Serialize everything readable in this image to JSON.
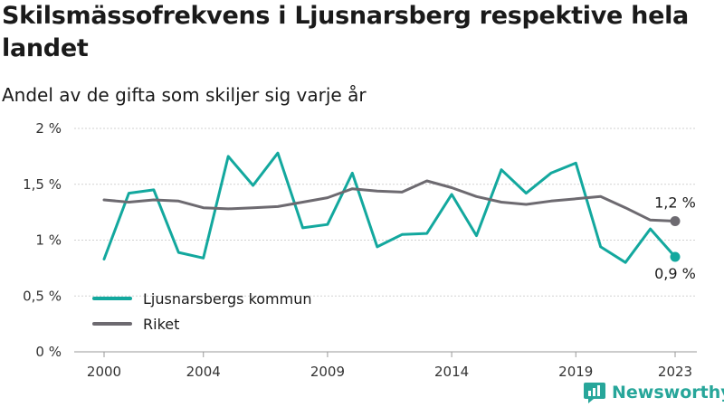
{
  "header": {
    "title": "Skilsmässofrekvens i Ljusnarsberg respektive hela landet",
    "subtitle": "Andel av de gifta som skiljer sig varje år"
  },
  "brand": {
    "name": "Newsworthy",
    "logo": "newsworthy-logo-icon",
    "color": "#27a69a"
  },
  "chart_data": {
    "type": "line",
    "title": "Skilsmässofrekvens i Ljusnarsberg respektive hela landet",
    "subtitle": "Andel av de gifta som skiljer sig varje år",
    "xlabel": "",
    "ylabel": "",
    "x": [
      2000,
      2001,
      2002,
      2003,
      2004,
      2005,
      2006,
      2007,
      2008,
      2009,
      2010,
      2011,
      2012,
      2013,
      2014,
      2015,
      2016,
      2017,
      2018,
      2019,
      2020,
      2021,
      2022,
      2023
    ],
    "x_ticks": [
      "2000",
      "2004",
      "2009",
      "2014",
      "2019",
      "2023"
    ],
    "y_ticks": [
      "0 %",
      "0,5 %",
      "1 %",
      "1,5 %",
      "2 %"
    ],
    "ylim": [
      0,
      2
    ],
    "grid": "horizontal",
    "legend_position": "bottom-left",
    "series": [
      {
        "name": "Ljusnarsbergs kommun",
        "color": "#13a89e",
        "values": [
          0.83,
          1.42,
          1.45,
          0.89,
          0.84,
          1.75,
          1.49,
          1.78,
          1.11,
          1.14,
          1.6,
          0.94,
          1.05,
          1.06,
          1.41,
          1.04,
          1.63,
          1.42,
          1.6,
          1.69,
          0.94,
          0.8,
          1.1,
          0.85
        ],
        "end_label": "0,9 %"
      },
      {
        "name": "Riket",
        "color": "#6d6a70",
        "values": [
          1.36,
          1.34,
          1.36,
          1.35,
          1.29,
          1.28,
          1.29,
          1.3,
          1.34,
          1.38,
          1.46,
          1.44,
          1.43,
          1.53,
          1.47,
          1.39,
          1.34,
          1.32,
          1.35,
          1.37,
          1.39,
          1.29,
          1.18,
          1.17
        ],
        "end_label": "1,2 %"
      }
    ]
  }
}
